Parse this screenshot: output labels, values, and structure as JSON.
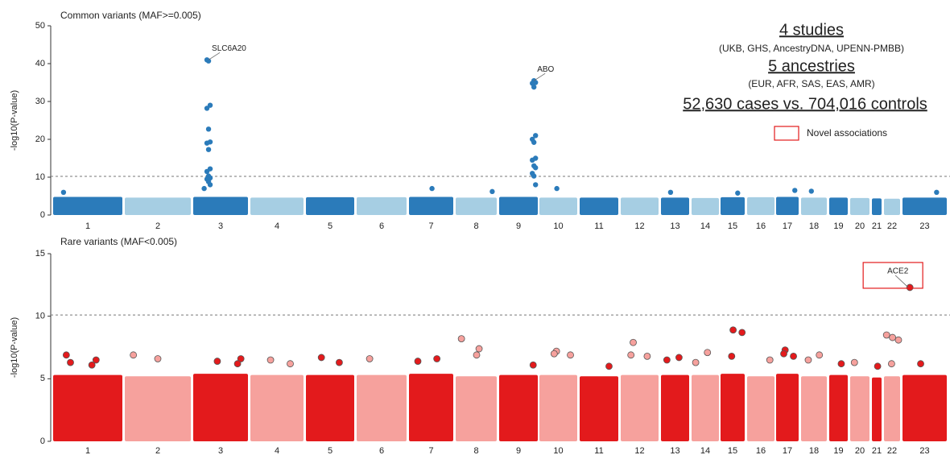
{
  "chart_data": [
    {
      "type": "scatter",
      "title": "Common variants (MAF>=0.005)",
      "y_label": "-log10(P-value)",
      "categories": [
        "1",
        "2",
        "3",
        "4",
        "5",
        "6",
        "7",
        "8",
        "9",
        "10",
        "11",
        "12",
        "13",
        "14",
        "15",
        "16",
        "17",
        "18",
        "19",
        "20",
        "21",
        "22",
        "23"
      ],
      "colors": [
        "#2b7bba",
        "#a6cee3"
      ],
      "ylim": [
        0,
        50
      ],
      "yticks": [
        0,
        10,
        20,
        30,
        40,
        50
      ],
      "threshold": 10.2,
      "bulk": [
        4.8,
        4.6,
        4.8,
        4.6,
        4.7,
        4.7,
        4.8,
        4.6,
        4.8,
        4.6,
        4.6,
        4.6,
        4.6,
        4.5,
        4.7,
        4.7,
        4.8,
        4.6,
        4.6,
        4.5,
        4.4,
        4.3,
        4.6
      ],
      "peaks": {
        "chromosome": [
          "3",
          "3",
          "3",
          "3",
          "3",
          "3",
          "3",
          "3",
          "3",
          "3",
          "3",
          "3",
          "3",
          "3",
          "3",
          "3",
          "9",
          "9",
          "9",
          "9",
          "9",
          "9",
          "9",
          "9",
          "9",
          "9",
          "9",
          "9",
          "9",
          "9",
          "1",
          "7",
          "8",
          "10",
          "17",
          "18",
          "23",
          "13",
          "15"
        ],
        "values": [
          41,
          40.7,
          29,
          28.2,
          22.7,
          19.3,
          19,
          17.3,
          12.2,
          11.5,
          10.3,
          9.8,
          9.5,
          8.8,
          8,
          7,
          35.5,
          35,
          34.8,
          33.8,
          21,
          20,
          19.2,
          15,
          14.5,
          13,
          12.5,
          11,
          10.3,
          8,
          6,
          7,
          6.2,
          7,
          6.5,
          6.3,
          6,
          6,
          5.8
        ]
      },
      "annotations": [
        {
          "text": "SLC6A20",
          "chromosome": "3",
          "value": 41,
          "novel": false
        },
        {
          "text": "ABO",
          "chromosome": "9",
          "value": 35.5,
          "novel": false
        }
      ]
    },
    {
      "type": "scatter",
      "title": "Rare variants (MAF<0.005)",
      "y_label": "-log10(P-value)",
      "categories": [
        "1",
        "2",
        "3",
        "4",
        "5",
        "6",
        "7",
        "8",
        "9",
        "10",
        "11",
        "12",
        "13",
        "14",
        "15",
        "16",
        "17",
        "18",
        "19",
        "20",
        "21",
        "22",
        "23"
      ],
      "colors": [
        "#e31a1c",
        "#f6a19d"
      ],
      "ylim": [
        0,
        15
      ],
      "yticks": [
        0,
        5,
        10,
        15
      ],
      "threshold": 10.1,
      "bulk": [
        5.3,
        5.2,
        5.4,
        5.3,
        5.3,
        5.3,
        5.4,
        5.2,
        5.3,
        5.3,
        5.2,
        5.3,
        5.3,
        5.3,
        5.4,
        5.2,
        5.4,
        5.2,
        5.3,
        5.2,
        5.1,
        5.2,
        5.3
      ],
      "peaks": {
        "chromosome": [
          "1",
          "1",
          "1",
          "1",
          "2",
          "2",
          "3",
          "3",
          "3",
          "4",
          "4",
          "5",
          "5",
          "6",
          "7",
          "7",
          "8",
          "8",
          "8",
          "9",
          "10",
          "10",
          "10",
          "11",
          "12",
          "12",
          "12",
          "13",
          "13",
          "14",
          "14",
          "15",
          "15",
          "15",
          "16",
          "17",
          "17",
          "17",
          "18",
          "18",
          "19",
          "20",
          "21",
          "22",
          "22",
          "22",
          "22",
          "23",
          "23"
        ],
        "values": [
          6.3,
          6.5,
          6.9,
          6.1,
          6.9,
          6.6,
          6.6,
          6.4,
          6.2,
          6.5,
          6.2,
          6.7,
          6.3,
          6.6,
          6.6,
          6.4,
          7.4,
          8.2,
          6.9,
          6.1,
          7.2,
          6.9,
          7.0,
          6.0,
          7.9,
          6.8,
          6.9,
          6.7,
          6.5,
          7.1,
          6.3,
          8.9,
          8.7,
          6.8,
          6.5,
          7.3,
          6.8,
          7.0,
          6.9,
          6.5,
          6.2,
          6.3,
          6.0,
          8.5,
          8.3,
          8.1,
          6.2,
          12.3,
          6.2
        ]
      },
      "annotations": [
        {
          "text": "ACE2",
          "chromosome": "23",
          "value": 12.3,
          "novel": true
        }
      ]
    }
  ],
  "header": {
    "studies": "4 studies",
    "study_list": "(UKB, GHS, AncestryDNA, UPENN-PMBB)",
    "ancestries": "5 ancestries",
    "ancestry_list": "(EUR, AFR, SAS, EAS, AMR)",
    "sample": "52,630 cases vs. 704,016 controls"
  },
  "legend": {
    "label": "Novel associations",
    "color": "#e31a1c"
  }
}
